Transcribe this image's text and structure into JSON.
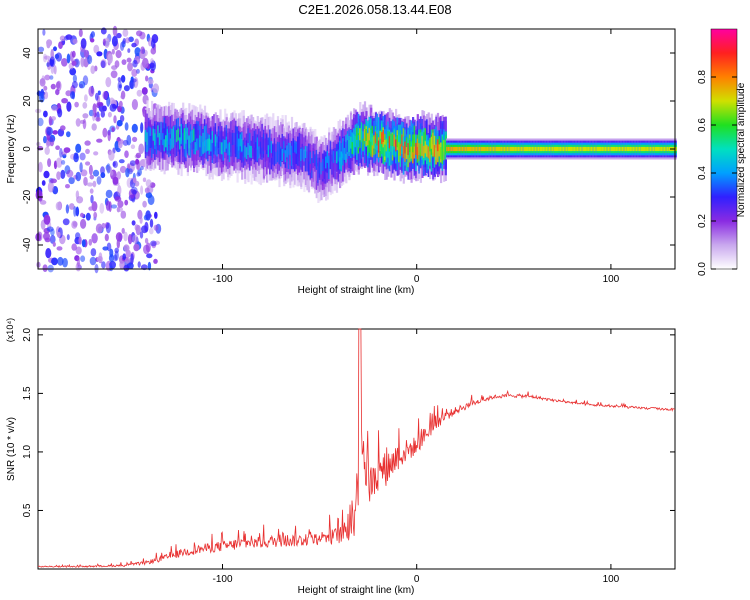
{
  "figure_title": "C2E1.2026.058.13.44.E08",
  "chart_data": [
    {
      "type": "heatmap",
      "title": "C2E1.2026.058.13.44.E08",
      "xlabel": "Height of straight line (km)",
      "ylabel": "Frequency (Hz)",
      "xlim": [
        -195,
        133
      ],
      "ylim": [
        -50,
        50
      ],
      "xticks": [
        -100,
        0,
        100
      ],
      "yticks": [
        -40,
        -20,
        0,
        20,
        40
      ],
      "colorbar": {
        "label": "Normalized spectral amplitude",
        "range": [
          0,
          1
        ],
        "ticks": [
          "0.0",
          "0.2",
          "0.4",
          "0.6",
          "0.8"
        ],
        "colormap": [
          "#ffffff",
          "#c9a8ee",
          "#8a2be2",
          "#3020ff",
          "#00a0ff",
          "#00e0c0",
          "#20e020",
          "#d0e000",
          "#ff8000",
          "#ff2020",
          "#ff00a0"
        ]
      },
      "ridge": {
        "description_points_x": [
          -140,
          -120,
          -100,
          -80,
          -60,
          -50,
          -40,
          -30,
          -20,
          -10,
          0,
          10,
          20,
          60,
          100,
          133
        ],
        "frequency_hz": [
          5,
          4,
          2,
          0,
          -2,
          -8,
          -3,
          5,
          3,
          1,
          1,
          0,
          0,
          0,
          0,
          0
        ],
        "peak_amplitude": [
          0.45,
          0.5,
          0.45,
          0.4,
          0.4,
          0.35,
          0.45,
          0.7,
          0.85,
          0.85,
          0.85,
          0.8,
          0.75,
          0.7,
          0.7,
          0.7
        ]
      },
      "noise_region_km": [
        -195,
        -133
      ]
    },
    {
      "type": "line",
      "xlabel": "Height of straight line (km)",
      "ylabel": "SNR (10 * v/v)",
      "scale_label": "(x10⁴)",
      "xlim": [
        -195,
        133
      ],
      "ylim": [
        0,
        2.05
      ],
      "xticks": [
        -100,
        0,
        100
      ],
      "yticks": [
        "0.5",
        "1.0",
        "1.5",
        "2.0"
      ],
      "line_color": "#e83030",
      "series": [
        {
          "name": "SNR",
          "x": [
            -195,
            -170,
            -150,
            -140,
            -130,
            -120,
            -110,
            -100,
            -90,
            -80,
            -70,
            -60,
            -50,
            -45,
            -40,
            -35,
            -32,
            -30,
            -29,
            -28,
            -26,
            -24,
            -20,
            -15,
            -10,
            -5,
            0,
            5,
            10,
            20,
            30,
            40,
            50,
            60,
            70,
            80,
            90,
            100,
            110,
            120,
            133
          ],
          "y": [
            0.02,
            0.02,
            0.03,
            0.05,
            0.09,
            0.14,
            0.17,
            0.19,
            0.21,
            0.22,
            0.24,
            0.24,
            0.26,
            0.27,
            0.28,
            0.32,
            0.45,
            0.75,
            1.35,
            1.1,
            0.8,
            0.7,
            0.8,
            0.85,
            0.95,
            1.0,
            1.05,
            1.15,
            1.25,
            1.35,
            1.42,
            1.47,
            1.48,
            1.47,
            1.44,
            1.42,
            1.4,
            1.39,
            1.38,
            1.37,
            1.36
          ],
          "noise_amplitude": [
            0.01,
            0.01,
            0.02,
            0.03,
            0.05,
            0.07,
            0.08,
            0.09,
            0.1,
            0.1,
            0.11,
            0.11,
            0.12,
            0.13,
            0.14,
            0.2,
            0.4,
            0.45,
            0.6,
            0.45,
            0.4,
            0.35,
            0.3,
            0.3,
            0.25,
            0.2,
            0.15,
            0.15,
            0.12,
            0.06,
            0.05,
            0.03,
            0.03,
            0.03,
            0.02,
            0.02,
            0.02,
            0.02,
            0.02,
            0.02,
            0.02
          ]
        }
      ]
    }
  ]
}
